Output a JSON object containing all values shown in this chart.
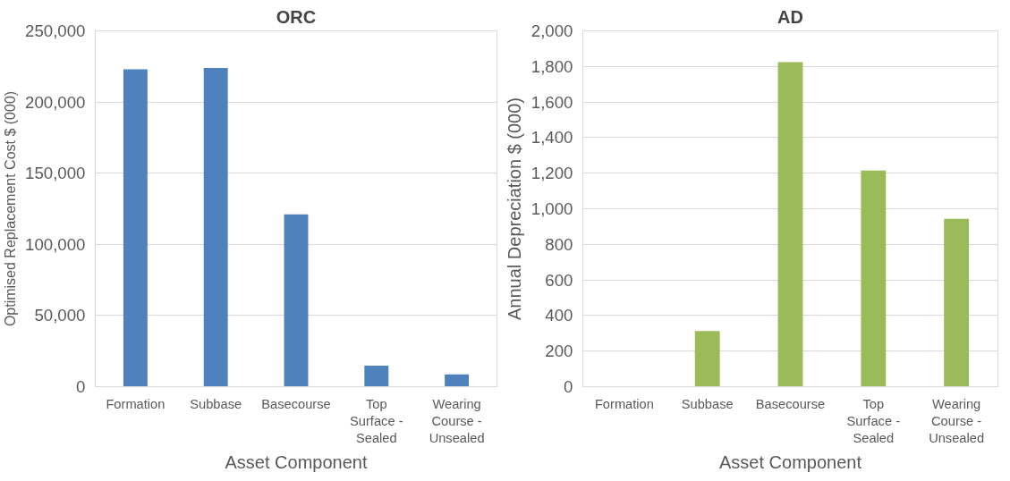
{
  "chart_data": [
    {
      "type": "bar",
      "title": "ORC",
      "categories": [
        "Formation",
        "Subbase",
        "Basecourse",
        "Top Surface - Sealed",
        "Wearing Course - Unsealed"
      ],
      "xlabel": "Asset Component",
      "ylabel": "Optimised Replacement Cost $ (000)",
      "series": [
        {
          "color": "#4f81bd",
          "values": [
            223000,
            224000,
            121000,
            14700,
            8700
          ]
        }
      ],
      "ylim": [
        0,
        250000
      ],
      "yticks": [
        {
          "value": 0,
          "label": "0"
        },
        {
          "value": 50000,
          "label": "50,000"
        },
        {
          "value": 100000,
          "label": "100,000"
        },
        {
          "value": 150000,
          "label": "150,000"
        },
        {
          "value": 200000,
          "label": "200,000"
        },
        {
          "value": 250000,
          "label": "250,000"
        }
      ],
      "grid": "y"
    },
    {
      "type": "bar",
      "title": "AD",
      "categories": [
        "Formation",
        "Subbase",
        "Basecourse",
        "Top Surface - Sealed",
        "Wearing Course - Unsealed"
      ],
      "xlabel": "Asset Component",
      "ylabel": "Annual Depreciation $ (000)",
      "series": [
        {
          "color": "#9bbb59",
          "values": [
            0,
            313,
            1824,
            1215,
            944
          ]
        }
      ],
      "ylim": [
        0,
        2000
      ],
      "yticks": [
        {
          "value": 0,
          "label": "0"
        },
        {
          "value": 200,
          "label": "200"
        },
        {
          "value": 400,
          "label": "400"
        },
        {
          "value": 600,
          "label": "600"
        },
        {
          "value": 800,
          "label": "800"
        },
        {
          "value": 1000,
          "label": "1,000"
        },
        {
          "value": 1200,
          "label": "1,200"
        },
        {
          "value": 1400,
          "label": "1,400"
        },
        {
          "value": 1600,
          "label": "1,600"
        },
        {
          "value": 1800,
          "label": "1,800"
        },
        {
          "value": 2000,
          "label": "2,000"
        }
      ],
      "grid": "y"
    }
  ]
}
